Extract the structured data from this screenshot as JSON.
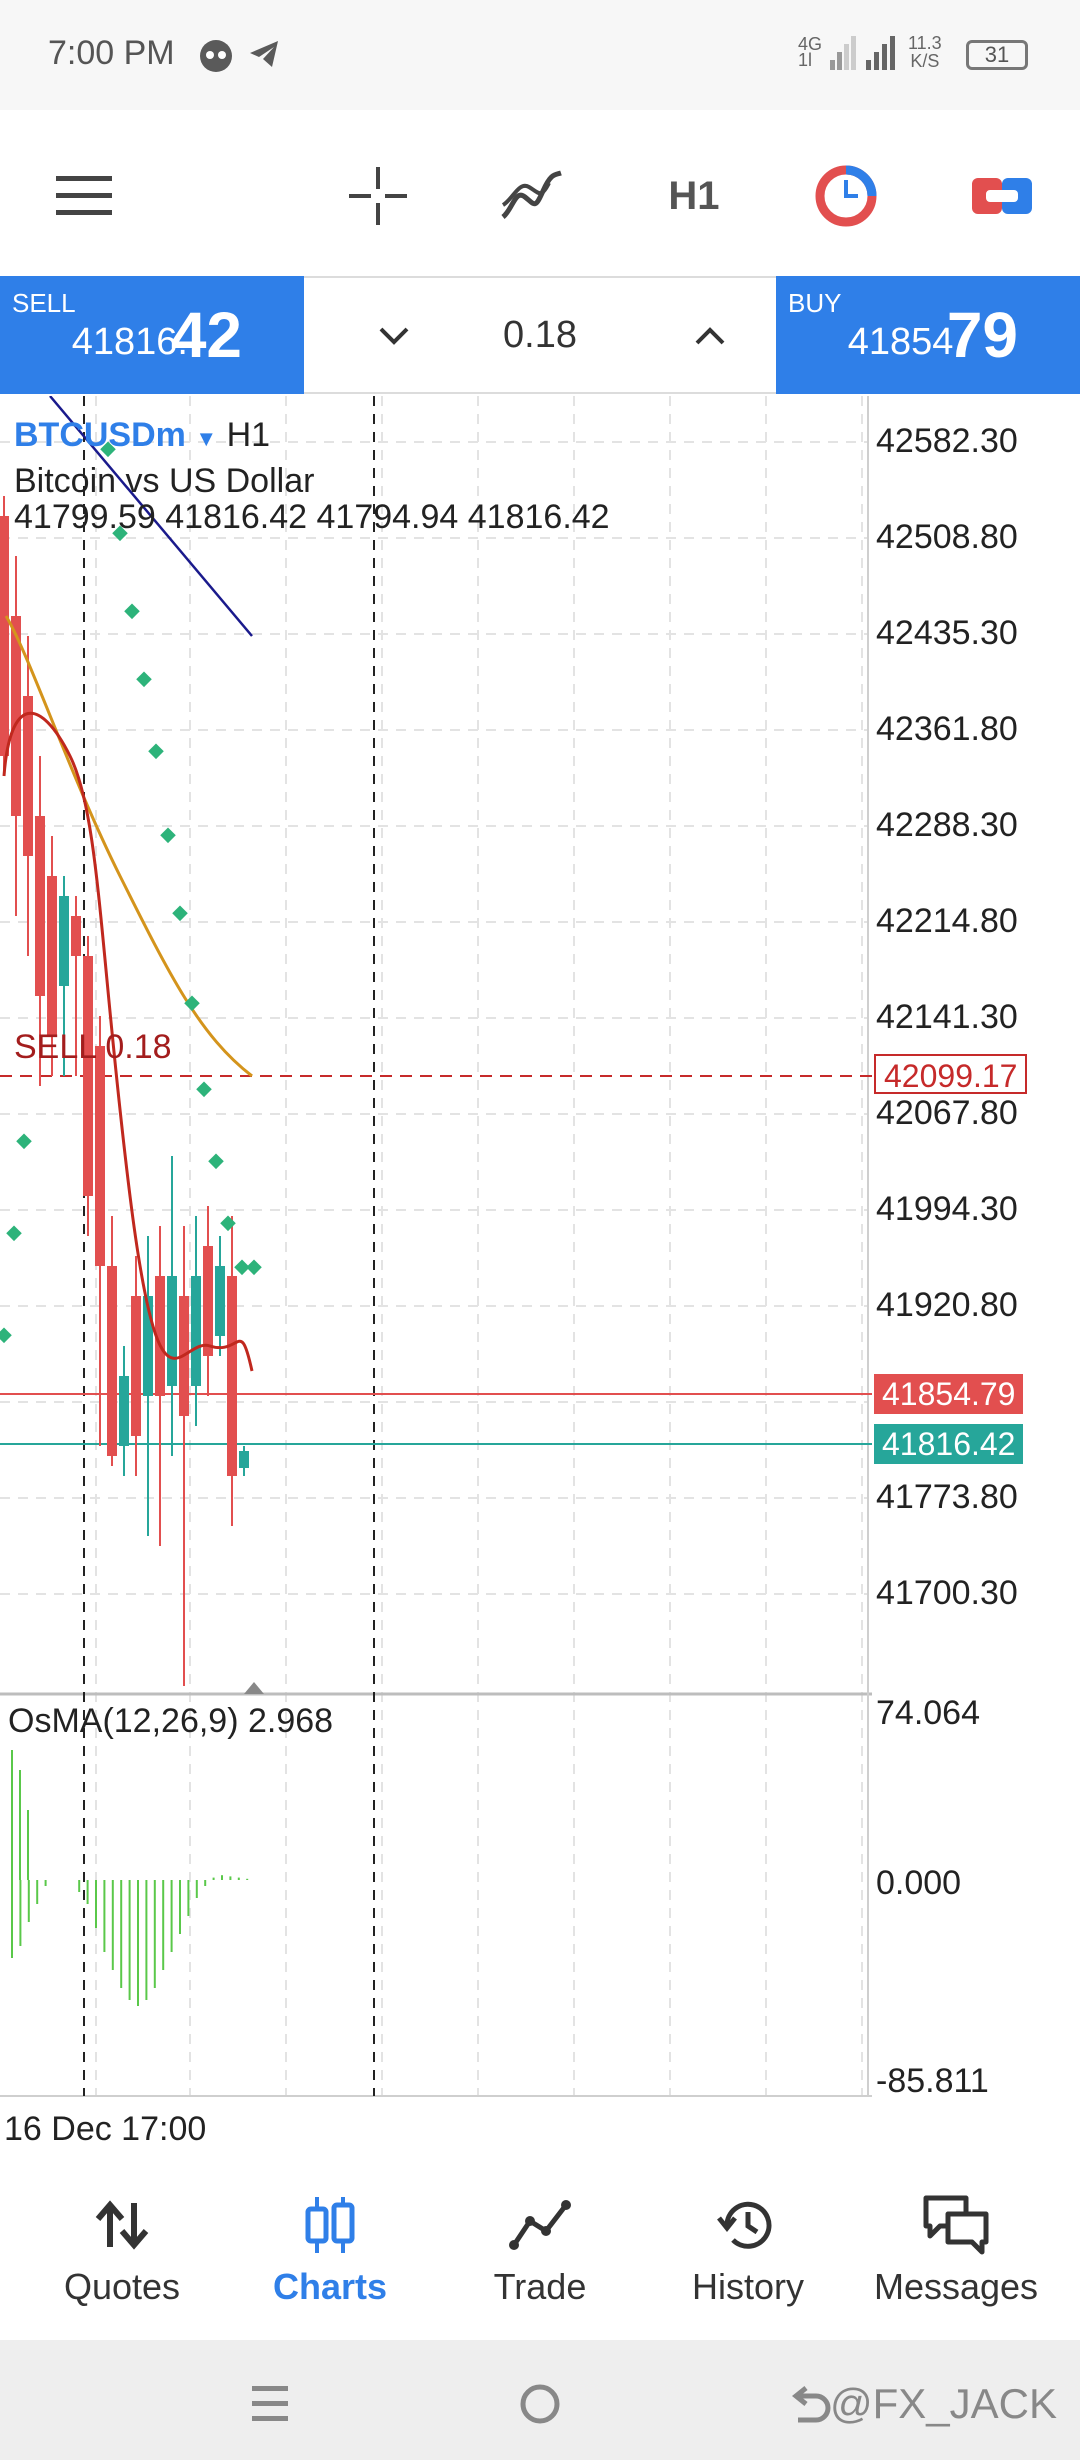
{
  "status_bar": {
    "time": "7:00 PM",
    "network_type": "4G",
    "network_sub": "1l",
    "speed_value": "11.3",
    "speed_unit": "K/S",
    "battery": "31"
  },
  "toolbar": {
    "timeframe": "H1"
  },
  "trade_panel": {
    "sell_label": "SELL",
    "sell_price_prefix": "41816.",
    "sell_price_big": "42",
    "lot_size": "0.18",
    "buy_label": "BUY",
    "buy_price_prefix": "41854.",
    "buy_price_big": "79"
  },
  "chart": {
    "symbol": "BTCUSDm",
    "timeframe": "H1",
    "description": "Bitcoin vs US Dollar",
    "ohlc": "41799.59 41816.42 41794.94 41816.42",
    "order_label": "SELL 0.18",
    "order_price": "42099.17",
    "ask_price": "41854.79",
    "bid_price": "41816.42",
    "price_axis": [
      "42582.30",
      "42508.80",
      "42435.30",
      "42361.80",
      "42288.30",
      "42214.80",
      "42141.30",
      "42067.80",
      "41994.30",
      "41920.80",
      "41773.80",
      "41700.30"
    ],
    "indicator_label": "OsMA(12,26,9) 2.968",
    "indicator_axis": [
      "74.064",
      "0.000",
      "-85.811"
    ],
    "time_label": "16 Dec 17:00",
    "colors": {
      "bull": "#26a69a",
      "bear": "#e24f4f",
      "ma_fast": "#c0281e",
      "ma_slow": "#d4941c",
      "ma_long": "#1a1a8c",
      "sar": "#2db37a",
      "osma": "#5ac84a"
    }
  },
  "bottom_nav": {
    "items": [
      {
        "label": "Quotes",
        "icon": "arrows-updown-icon"
      },
      {
        "label": "Charts",
        "icon": "candles-icon"
      },
      {
        "label": "Trade",
        "icon": "trend-icon"
      },
      {
        "label": "History",
        "icon": "history-icon"
      },
      {
        "label": "Messages",
        "icon": "messages-icon"
      }
    ]
  },
  "system_nav": {
    "watermark": "@FX_JACK"
  }
}
